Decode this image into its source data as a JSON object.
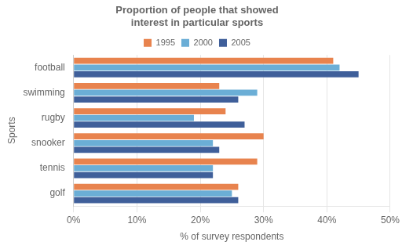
{
  "chart_data": {
    "type": "bar",
    "title": "Proportion of people that showed\ninterest in particular sports",
    "xlabel": "% of survey respondents",
    "ylabel": "Sports",
    "orientation": "horizontal",
    "categories": [
      "football",
      "swimming",
      "rugby",
      "snooker",
      "tennis",
      "golf"
    ],
    "series": [
      {
        "name": "1995",
        "color": "#E8834E",
        "values": [
          41,
          23,
          24,
          30,
          29,
          26
        ]
      },
      {
        "name": "2000",
        "color": "#6BAED6",
        "values": [
          42,
          29,
          19,
          22,
          22,
          25
        ]
      },
      {
        "name": "2005",
        "color": "#3F5F9A",
        "values": [
          45,
          26,
          27,
          23,
          22,
          26
        ]
      }
    ],
    "xlim": [
      0,
      50
    ],
    "xticks": [
      {
        "value": 0,
        "label": "0%"
      },
      {
        "value": 10,
        "label": "10%"
      },
      {
        "value": 20,
        "label": "20%"
      },
      {
        "value": 30,
        "label": "30%"
      },
      {
        "value": 40,
        "label": "40%"
      },
      {
        "value": 50,
        "label": "50%"
      }
    ],
    "grid": true,
    "legend": "top"
  }
}
